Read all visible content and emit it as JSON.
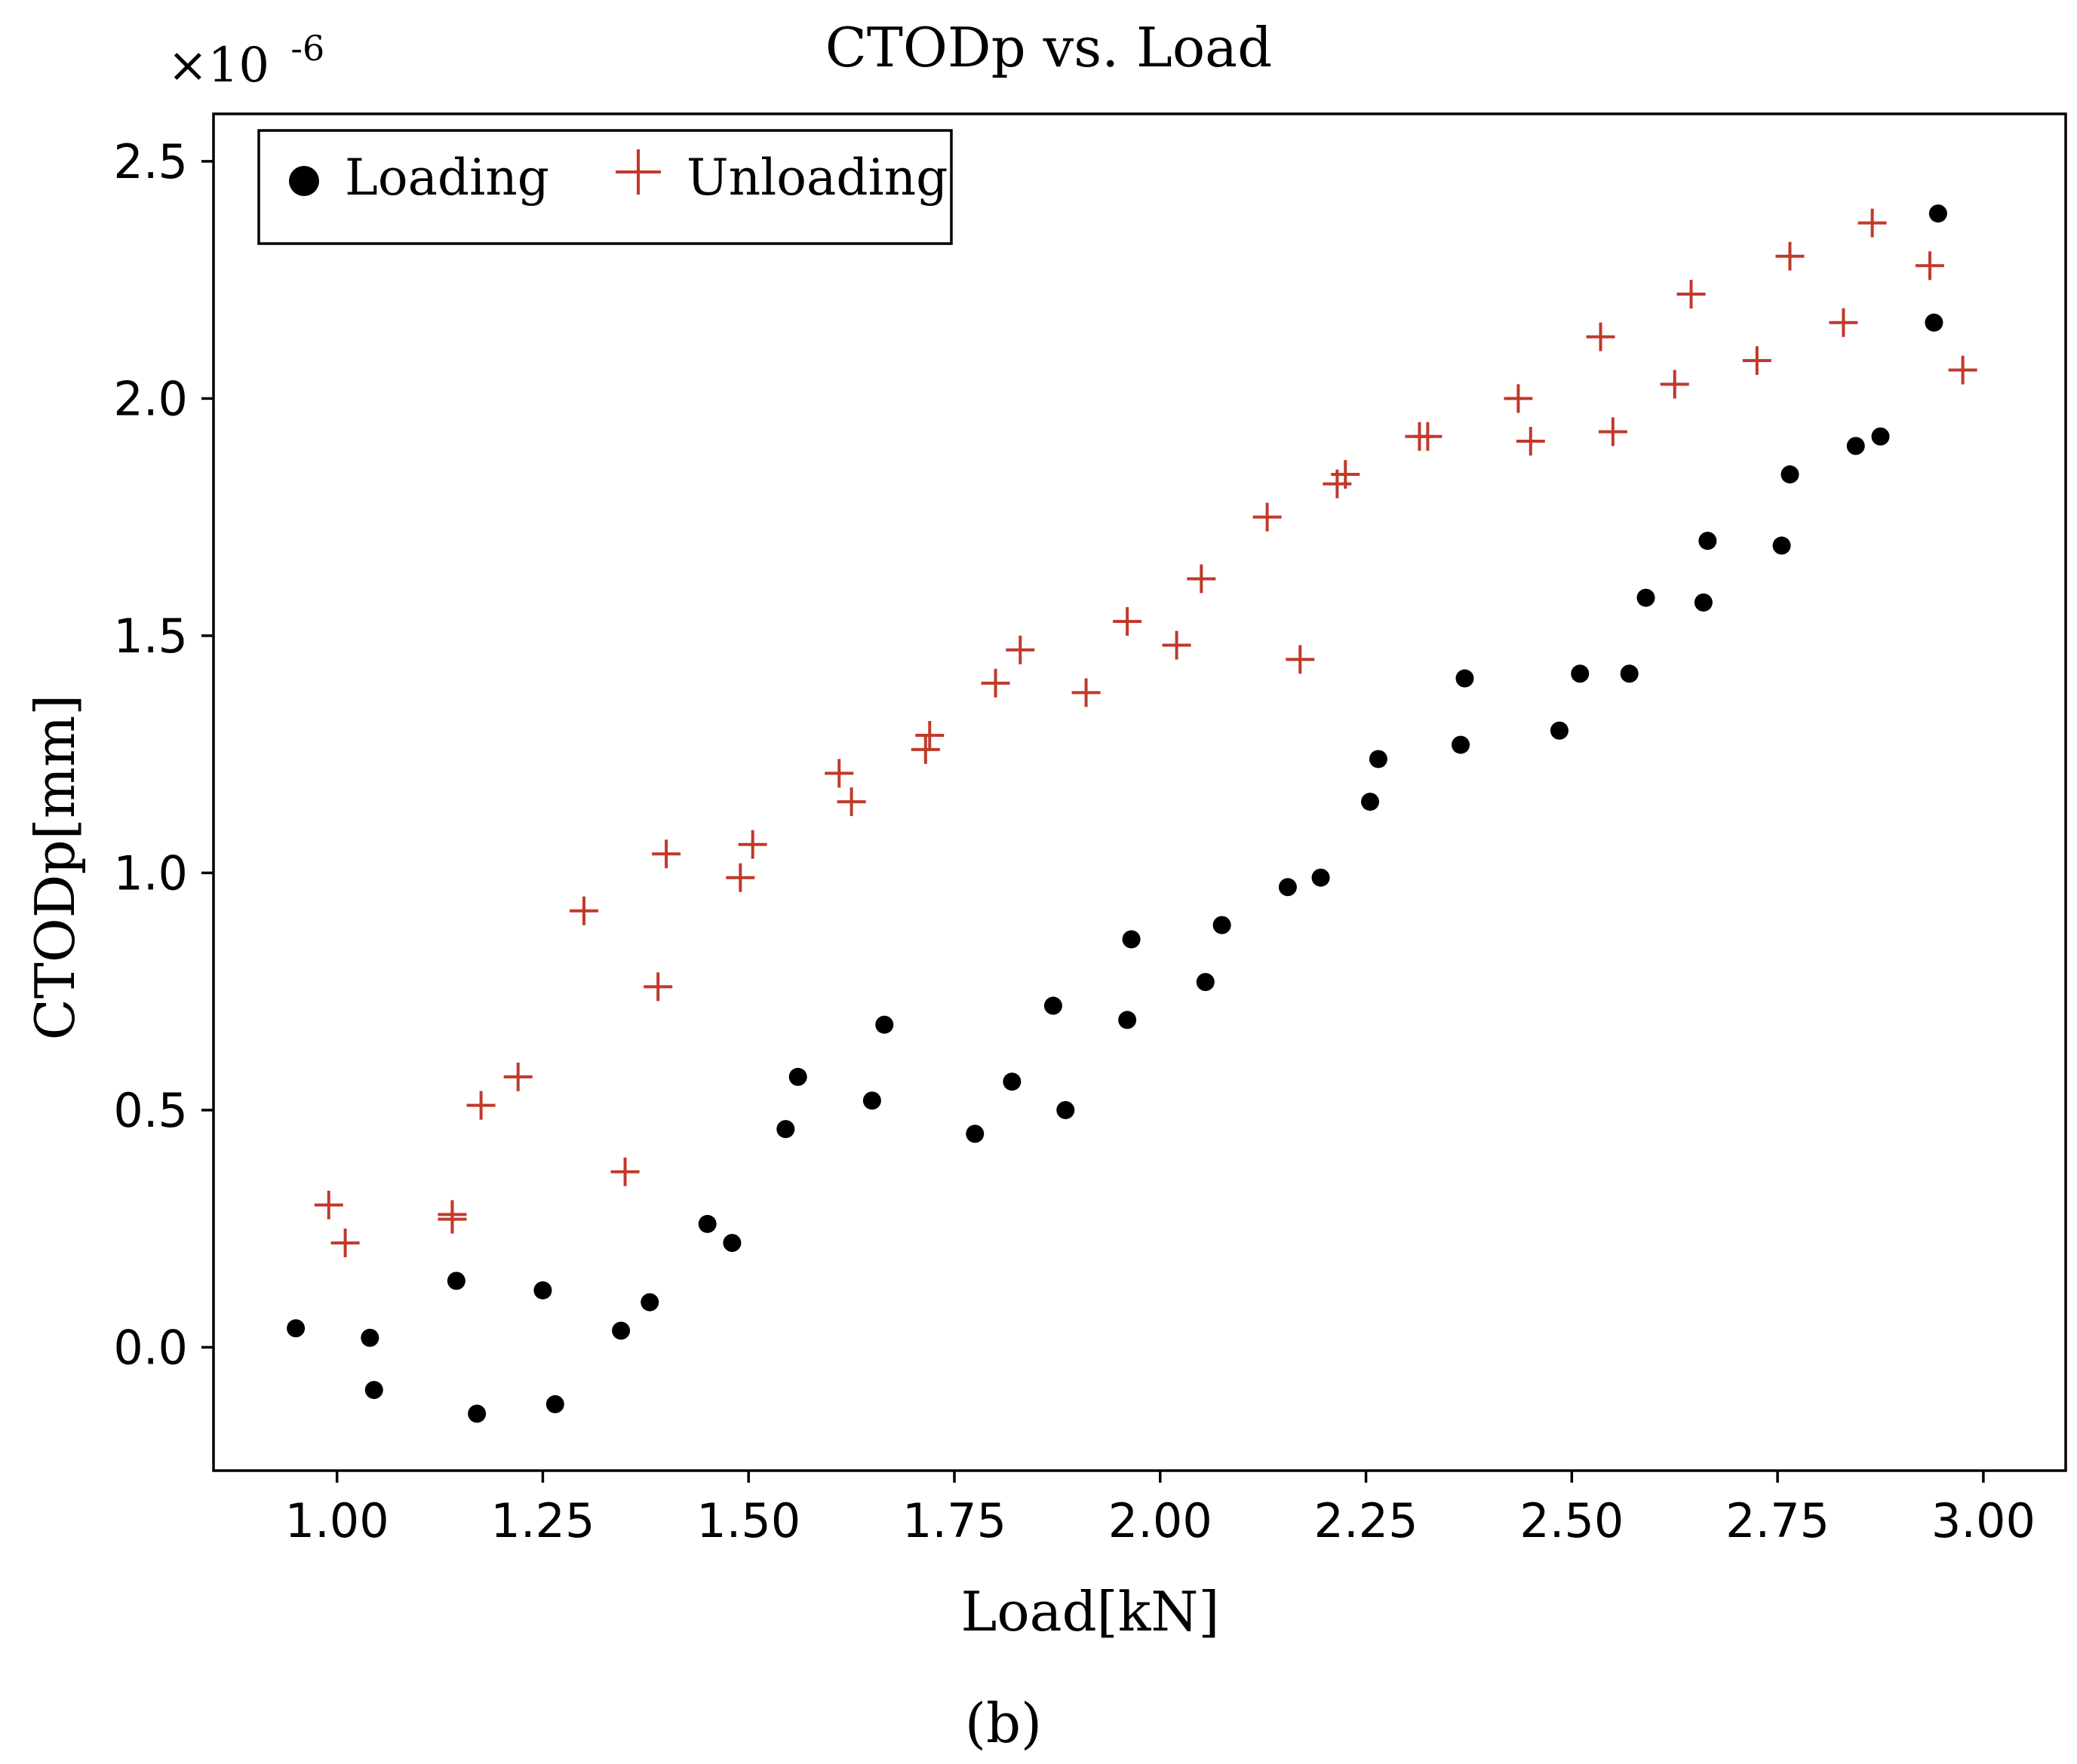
{
  "chart_data": {
    "type": "scatter",
    "title": "CTODp vs. Load",
    "xlabel": "Load[kN]",
    "ylabel": "CTODp[mm]",
    "y_scale_label": "×10",
    "y_scale_exponent": "-6",
    "caption": "(b)",
    "xlim": [
      0.85,
      3.1
    ],
    "ylim": [
      -0.26,
      2.6
    ],
    "x_ticks": [
      1.0,
      1.25,
      1.5,
      1.75,
      2.0,
      2.25,
      2.5,
      2.75,
      3.0
    ],
    "x_tick_labels": [
      "1.00",
      "1.25",
      "1.50",
      "1.75",
      "2.00",
      "2.25",
      "2.50",
      "2.75",
      "3.00"
    ],
    "y_ticks": [
      0.0,
      0.5,
      1.0,
      1.5,
      2.0,
      2.5
    ],
    "y_tick_labels": [
      "0.0",
      "0.5",
      "1.0",
      "1.5",
      "2.0",
      "2.5"
    ],
    "grid": false,
    "legend_position": "top-left",
    "series": [
      {
        "name": "Loading",
        "marker": "circle",
        "color": "#000000",
        "points": [
          [
            0.95,
            0.04
          ],
          [
            1.04,
            0.02
          ],
          [
            1.045,
            -0.09
          ],
          [
            1.145,
            0.14
          ],
          [
            1.17,
            -0.14
          ],
          [
            1.25,
            0.12
          ],
          [
            1.265,
            -0.12
          ],
          [
            1.345,
            0.035
          ],
          [
            1.38,
            0.095
          ],
          [
            1.45,
            0.26
          ],
          [
            1.48,
            0.22
          ],
          [
            1.545,
            0.46
          ],
          [
            1.56,
            0.57
          ],
          [
            1.65,
            0.52
          ],
          [
            1.665,
            0.68
          ],
          [
            1.775,
            0.45
          ],
          [
            1.82,
            0.56
          ],
          [
            1.87,
            0.72
          ],
          [
            1.885,
            0.5
          ],
          [
            1.96,
            0.69
          ],
          [
            1.965,
            0.86
          ],
          [
            2.055,
            0.77
          ],
          [
            2.075,
            0.89
          ],
          [
            2.155,
            0.97
          ],
          [
            2.195,
            0.99
          ],
          [
            2.255,
            1.15
          ],
          [
            2.265,
            1.24
          ],
          [
            2.365,
            1.27
          ],
          [
            2.37,
            1.41
          ],
          [
            2.485,
            1.3
          ],
          [
            2.51,
            1.42
          ],
          [
            2.57,
            1.42
          ],
          [
            2.59,
            1.58
          ],
          [
            2.66,
            1.57
          ],
          [
            2.665,
            1.7
          ],
          [
            2.755,
            1.69
          ],
          [
            2.765,
            1.84
          ],
          [
            2.845,
            1.9
          ],
          [
            2.875,
            1.92
          ],
          [
            2.94,
            2.16
          ],
          [
            2.945,
            2.39
          ]
        ]
      },
      {
        "name": "Unloading",
        "marker": "plus",
        "color": "#c0392b",
        "points": [
          [
            0.99,
            0.3
          ],
          [
            1.01,
            0.22
          ],
          [
            1.14,
            0.27
          ],
          [
            1.14,
            0.28
          ],
          [
            1.175,
            0.51
          ],
          [
            1.22,
            0.57
          ],
          [
            1.3,
            0.92
          ],
          [
            1.35,
            0.37
          ],
          [
            1.39,
            0.76
          ],
          [
            1.4,
            1.04
          ],
          [
            1.49,
            0.99
          ],
          [
            1.505,
            1.06
          ],
          [
            1.61,
            1.21
          ],
          [
            1.625,
            1.15
          ],
          [
            1.715,
            1.26
          ],
          [
            1.72,
            1.29
          ],
          [
            1.8,
            1.4
          ],
          [
            1.83,
            1.47
          ],
          [
            1.91,
            1.38
          ],
          [
            1.96,
            1.53
          ],
          [
            2.02,
            1.48
          ],
          [
            2.05,
            1.62
          ],
          [
            2.13,
            1.75
          ],
          [
            2.17,
            1.45
          ],
          [
            2.215,
            1.82
          ],
          [
            2.225,
            1.84
          ],
          [
            2.315,
            1.92
          ],
          [
            2.325,
            1.92
          ],
          [
            2.435,
            2.0
          ],
          [
            2.45,
            1.91
          ],
          [
            2.535,
            2.13
          ],
          [
            2.55,
            1.93
          ],
          [
            2.625,
            2.03
          ],
          [
            2.645,
            2.22
          ],
          [
            2.725,
            2.08
          ],
          [
            2.765,
            2.3
          ],
          [
            2.83,
            2.16
          ],
          [
            2.865,
            2.37
          ],
          [
            2.935,
            2.28
          ],
          [
            2.975,
            2.06
          ]
        ]
      }
    ]
  },
  "colors": {
    "loading": "#000000",
    "unloading": "#c0392b",
    "axis": "#000000",
    "background": "#ffffff"
  }
}
